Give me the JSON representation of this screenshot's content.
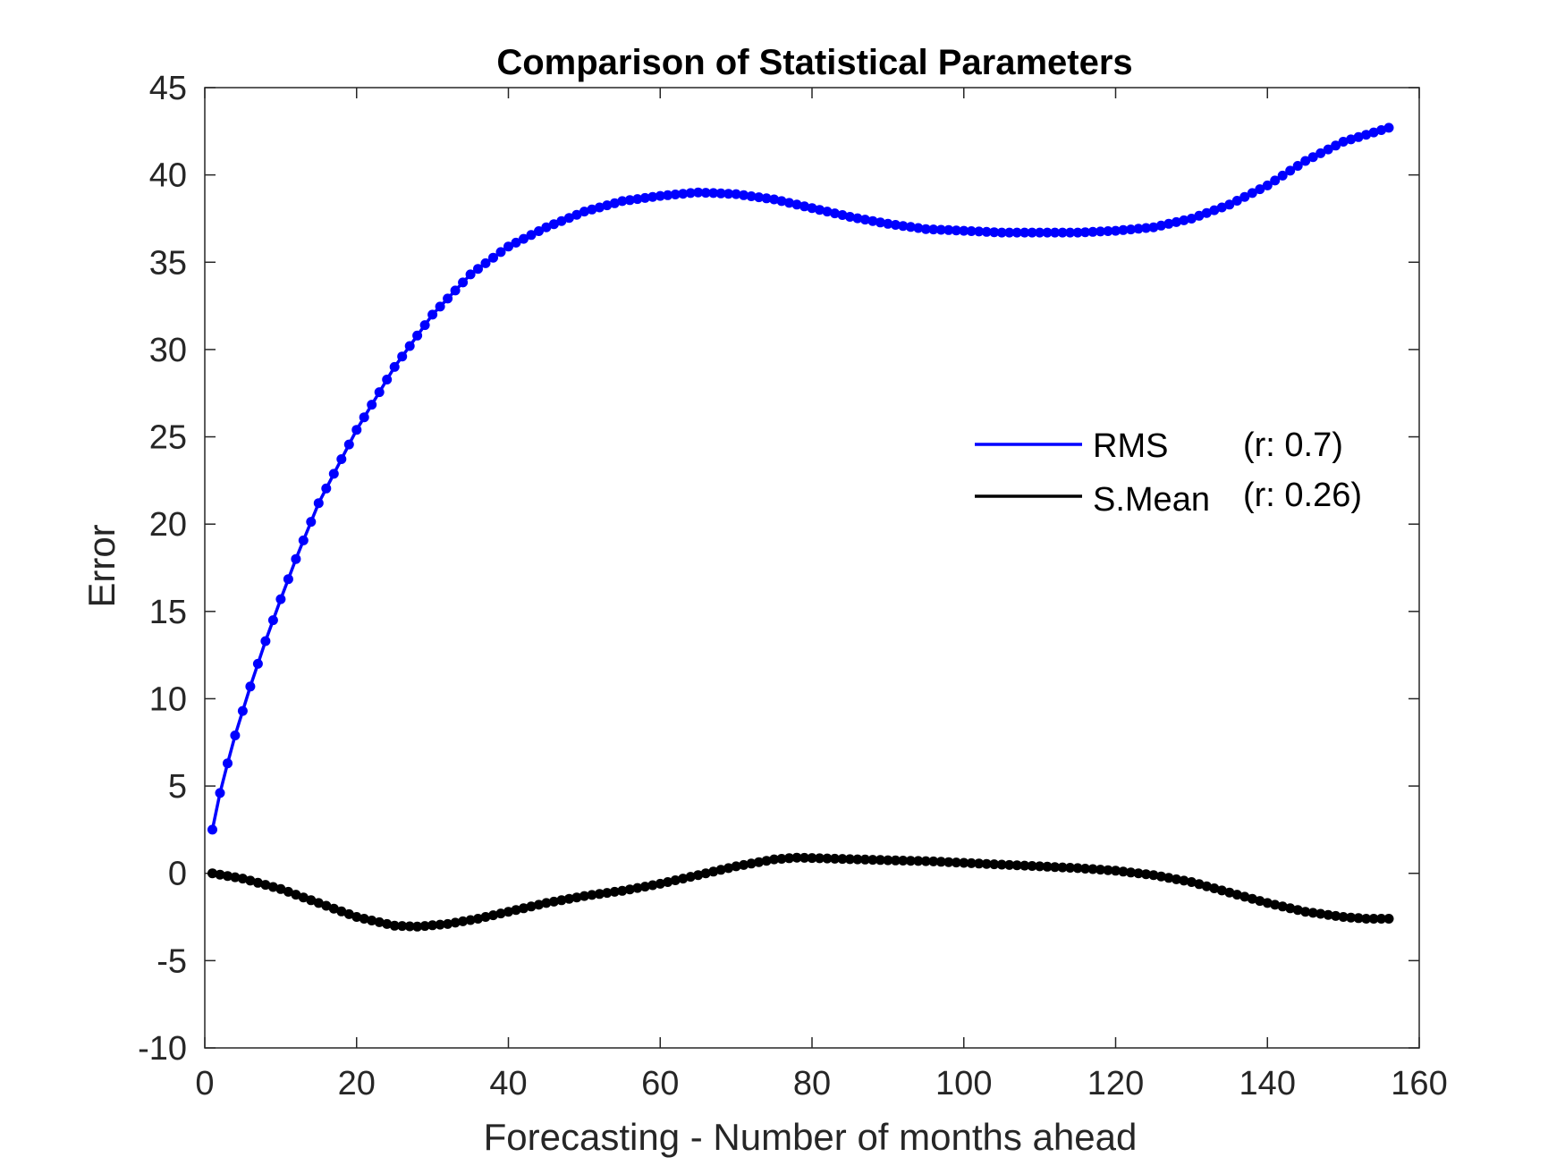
{
  "chart_data": {
    "type": "line",
    "title": "Comparison of Statistical Parameters",
    "xlabel": "Forecasting - Number of months ahead",
    "ylabel": "Error",
    "xlim": [
      0,
      160
    ],
    "ylim": [
      -10,
      45
    ],
    "xticks": [
      0,
      20,
      40,
      60,
      80,
      100,
      120,
      140,
      160
    ],
    "yticks": [
      -10,
      -5,
      0,
      5,
      10,
      15,
      20,
      25,
      30,
      35,
      40,
      45
    ],
    "grid": false,
    "legend_position": "top-right",
    "x_range": [
      1,
      156
    ],
    "series": [
      {
        "name": "RMS",
        "annotation": "(r: 0.7)",
        "color": "#0000ff",
        "marker": "dot",
        "keypoints_x": [
          1,
          2,
          3,
          4,
          5,
          6,
          7,
          8,
          10,
          12,
          15,
          20,
          25,
          30,
          35,
          40,
          45,
          50,
          55,
          60,
          65,
          70,
          75,
          80,
          85,
          90,
          95,
          100,
          105,
          110,
          115,
          120,
          125,
          130,
          135,
          140,
          145,
          150,
          156
        ],
        "keypoints_y": [
          2.5,
          4.6,
          6.3,
          7.9,
          9.3,
          10.7,
          12.0,
          13.3,
          15.7,
          18.0,
          21.2,
          25.4,
          29.0,
          32.0,
          34.3,
          35.9,
          37.0,
          37.9,
          38.5,
          38.8,
          39.0,
          38.9,
          38.6,
          38.1,
          37.6,
          37.2,
          36.9,
          36.8,
          36.7,
          36.7,
          36.7,
          36.8,
          37.0,
          37.5,
          38.3,
          39.4,
          40.8,
          41.9,
          42.7
        ]
      },
      {
        "name": "S.Mean",
        "annotation": "(r: 0.26)",
        "color": "#000000",
        "marker": "dot",
        "keypoints_x": [
          1,
          5,
          10,
          15,
          20,
          25,
          28,
          32,
          36,
          40,
          45,
          50,
          55,
          60,
          65,
          70,
          75,
          78,
          82,
          86,
          90,
          95,
          100,
          105,
          110,
          115,
          120,
          125,
          130,
          135,
          140,
          145,
          150,
          153,
          156
        ],
        "keypoints_y": [
          0.0,
          -0.3,
          -0.9,
          -1.7,
          -2.5,
          -3.0,
          -3.05,
          -2.9,
          -2.6,
          -2.2,
          -1.7,
          -1.3,
          -1.0,
          -0.6,
          -0.1,
          0.4,
          0.8,
          0.9,
          0.85,
          0.8,
          0.75,
          0.7,
          0.6,
          0.5,
          0.4,
          0.3,
          0.15,
          -0.1,
          -0.5,
          -1.1,
          -1.7,
          -2.2,
          -2.5,
          -2.6,
          -2.6
        ]
      }
    ]
  }
}
